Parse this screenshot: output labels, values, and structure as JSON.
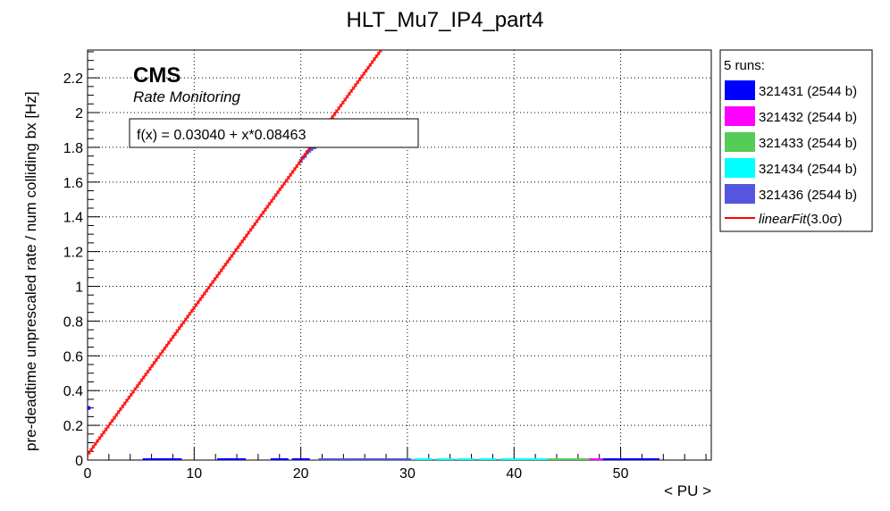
{
  "chart_data": {
    "type": "scatter",
    "title": "HLT_Mu7_IP4_part4",
    "xlabel": "< PU >",
    "ylabel": "pre-deadtime unprescaled rate / num colliding bx [Hz]",
    "xlim": [
      0,
      58.5
    ],
    "ylim": [
      0,
      2.36
    ],
    "grid": true,
    "x_ticks": [
      0,
      10,
      20,
      30,
      40,
      50
    ],
    "x_tick_labels": [
      "0",
      "10",
      "20",
      "30",
      "40",
      "50"
    ],
    "y_ticks": [
      0,
      0.2,
      0.4,
      0.6,
      0.8,
      1,
      1.2,
      1.4,
      1.6,
      1.8,
      2,
      2.2
    ],
    "y_tick_labels": [
      "0",
      "0.2",
      "0.4",
      "0.6",
      "0.8",
      "1",
      "1.2",
      "1.4",
      "1.6",
      "1.8",
      "2",
      "2.2"
    ],
    "brand": {
      "name": "CMS",
      "subtitle": "Rate Monitoring"
    },
    "fit_box": "f(x) = 0.03040 + x*0.08463",
    "fit": {
      "name": "linearFit(3.0σ)",
      "intercept": 0.0304,
      "slope": 0.08463,
      "sigma_band": 0.015,
      "color": "#ff0000"
    },
    "legend": {
      "header": "5 runs:",
      "position": "right-outside",
      "entries": [
        {
          "label": "321431 (2544 b)",
          "color": "#0000ff"
        },
        {
          "label": "321432 (2544 b)",
          "color": "#ff00ff"
        },
        {
          "label": "321433 (2544 b)",
          "color": "#55cc55"
        },
        {
          "label": "321434 (2544 b)",
          "color": "#00ffff"
        },
        {
          "label": "321436 (2544 b)",
          "color": "#5555dd"
        }
      ],
      "fit_label_main": "linearFit",
      "fit_label_sigma": "(3.0σ)"
    },
    "series": [
      {
        "name": "321431 (2544 b)",
        "color": "#0000ff",
        "points": [
          [
            0.1,
            0.3
          ],
          [
            6.0,
            0.0
          ],
          [
            7.5,
            0.0
          ],
          [
            8.0,
            0.0
          ],
          [
            13.0,
            0.0
          ],
          [
            14.0,
            0.0
          ],
          [
            18.0,
            0.0
          ],
          [
            20.0,
            0.0
          ],
          [
            47.0,
            0.0
          ],
          [
            48.5,
            0.0
          ],
          [
            50.0,
            0.0
          ],
          [
            51.5,
            0.0
          ],
          [
            52.8,
            0.0
          ]
        ]
      },
      {
        "name": "321432 (2544 b)",
        "color": "#ff00ff",
        "points": [
          [
            46.5,
            0.0
          ],
          [
            47.0,
            0.0
          ],
          [
            47.5,
            0.0
          ]
        ]
      },
      {
        "name": "321433 (2544 b)",
        "color": "#55cc55",
        "points": [
          [
            42.5,
            0.0
          ],
          [
            43.5,
            0.0
          ],
          [
            44.5,
            0.0
          ],
          [
            45.5,
            0.0
          ],
          [
            46.2,
            0.0
          ]
        ]
      },
      {
        "name": "321434 (2544 b)",
        "color": "#00ffff",
        "points": [
          [
            29.6,
            0.0
          ],
          [
            31.5,
            0.0
          ],
          [
            33.5,
            0.0
          ],
          [
            35.5,
            0.0
          ],
          [
            37.5,
            0.0
          ],
          [
            39.5,
            0.0
          ],
          [
            41.0,
            0.0
          ],
          [
            42.3,
            0.0
          ]
        ]
      },
      {
        "name": "321436 (2544 b)",
        "color": "#5555dd",
        "points": [
          [
            20.0,
            1.72
          ],
          [
            20.2,
            1.74
          ],
          [
            20.4,
            1.75
          ],
          [
            20.6,
            1.77
          ],
          [
            20.8,
            1.78
          ],
          [
            21.0,
            1.79
          ],
          [
            21.3,
            1.8
          ],
          [
            22.5,
            0.0
          ],
          [
            24.0,
            0.0
          ],
          [
            25.5,
            0.0
          ],
          [
            27.0,
            0.0
          ],
          [
            28.5,
            0.0
          ],
          [
            29.5,
            0.0
          ]
        ]
      }
    ]
  }
}
